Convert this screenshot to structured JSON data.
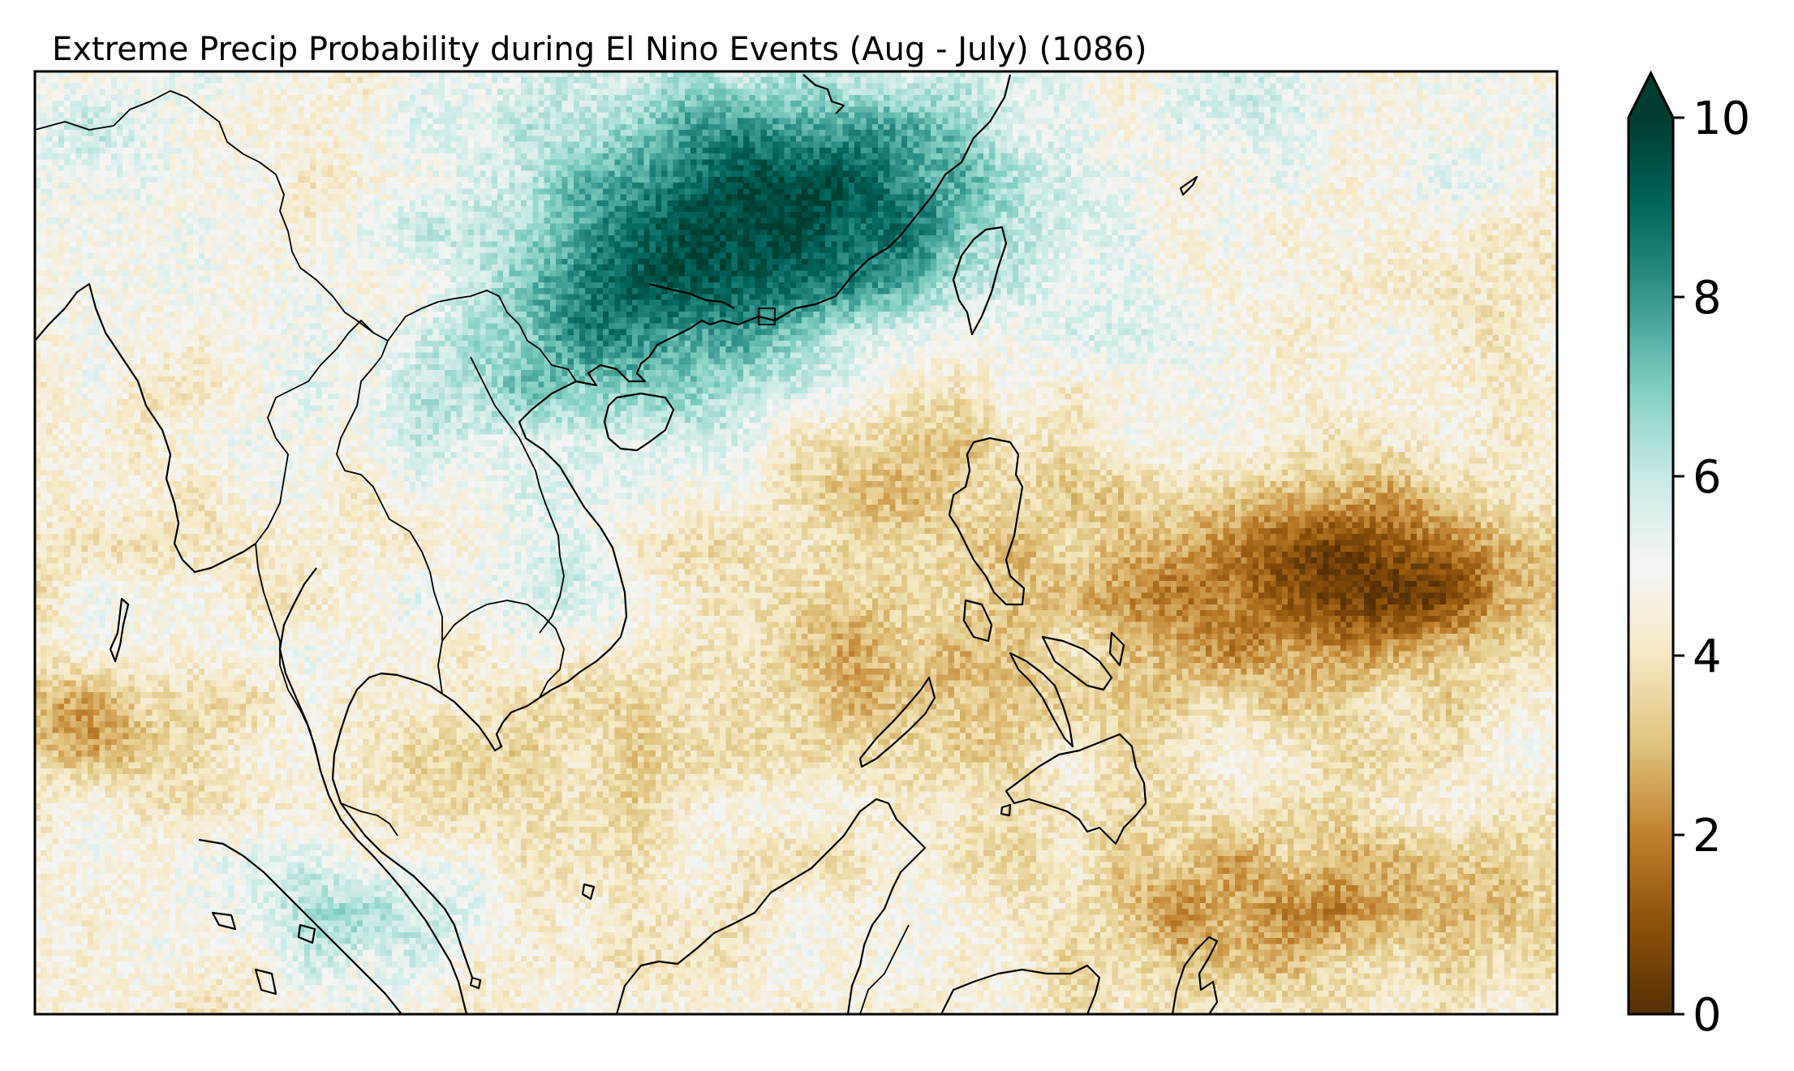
{
  "map": {
    "title": "Extreme Precip Probability during El Nino Events (Aug - July) (1086)",
    "colormap": "BrBG",
    "color_stops": [
      "#543005",
      "#8c510a",
      "#bf812d",
      "#dfc27d",
      "#f6e8c3",
      "#f5f5f5",
      "#c7eae5",
      "#80cdc1",
      "#35978f",
      "#01665e",
      "#003c30"
    ],
    "region": "Southeast Asia / South China Sea",
    "field_pattern": {
      "high_regions": [
        "South China",
        "Laos / northern Vietnam",
        "Gulf of Thailand",
        "Sumatra / Malay Peninsula west coast",
        "Taiwan Strait north"
      ],
      "low_regions": [
        "Philippine Sea",
        "Philippines",
        "Sulu / Celebes Sea",
        "Borneo north coast",
        "Andaman Sea"
      ]
    }
  },
  "colorbar": {
    "vmin": 0,
    "vmax": 10,
    "extend": "max",
    "ticks": [
      "0",
      "2",
      "4",
      "6",
      "8",
      "10"
    ]
  }
}
